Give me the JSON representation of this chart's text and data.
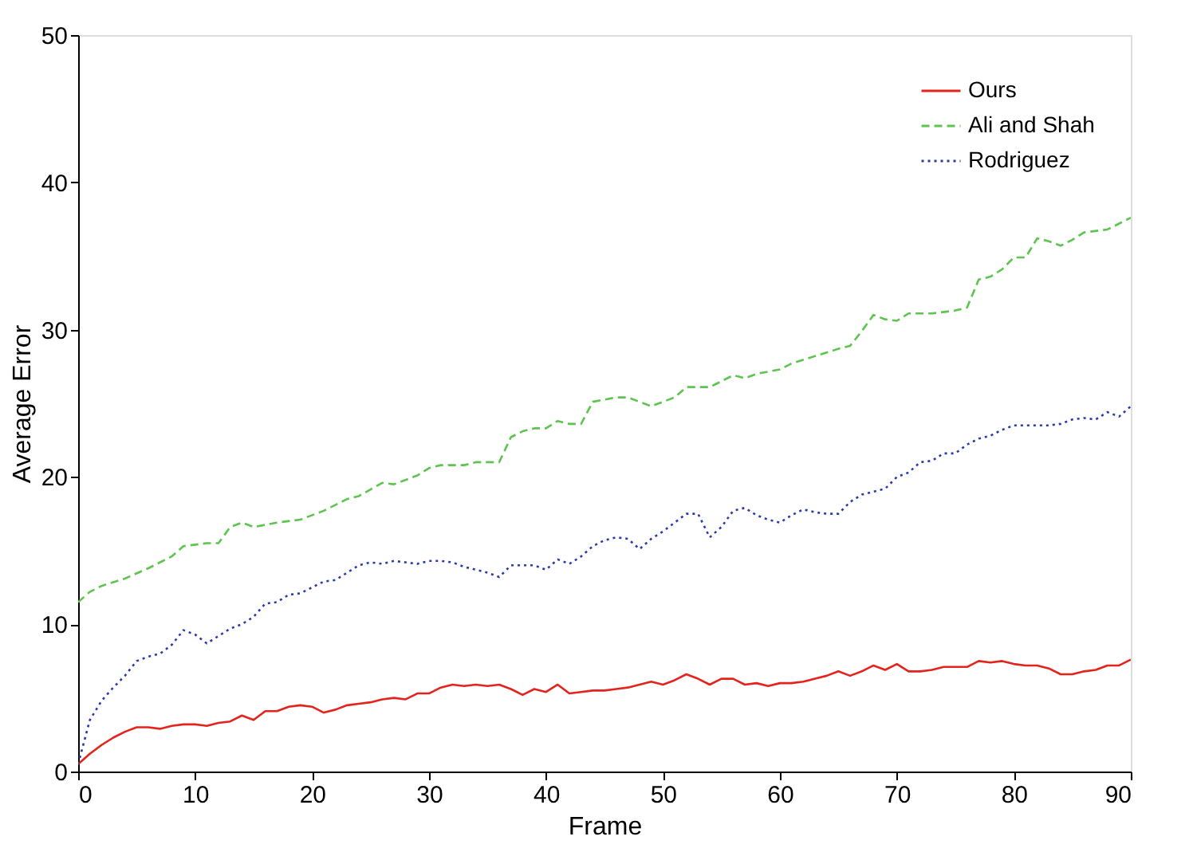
{
  "chart_data": {
    "type": "line",
    "xlabel": "Frame",
    "ylabel": "Average Error",
    "xlim": [
      0,
      90
    ],
    "ylim": [
      0,
      50
    ],
    "xticks": [
      0,
      10,
      20,
      30,
      40,
      50,
      60,
      70,
      80,
      90
    ],
    "yticks": [
      0,
      10,
      20,
      30,
      40,
      50
    ],
    "grid": false,
    "legend": "top right",
    "marker": "none",
    "series": [
      {
        "name": "Ours",
        "color": "#e3231c",
        "line_style": "solid",
        "x": [
          0,
          1,
          2,
          3,
          4,
          5,
          6,
          7,
          8,
          9,
          10,
          11,
          12,
          13,
          14,
          15,
          16,
          17,
          18,
          19,
          20,
          21,
          22,
          23,
          24,
          25,
          26,
          27,
          28,
          29,
          30,
          31,
          32,
          33,
          34,
          35,
          36,
          37,
          38,
          39,
          40,
          41,
          42,
          43,
          44,
          45,
          46,
          47,
          48,
          49,
          50,
          51,
          52,
          53,
          54,
          55,
          56,
          57,
          58,
          59,
          60,
          61,
          62,
          63,
          64,
          65,
          66,
          67,
          68,
          69,
          70,
          71,
          72,
          73,
          74,
          75,
          76,
          77,
          78,
          79,
          80,
          81,
          82,
          83,
          84,
          85,
          86,
          87,
          88,
          89,
          90
        ],
        "values": [
          0.5,
          1.2,
          1.8,
          2.3,
          2.7,
          3.0,
          3.0,
          2.9,
          3.1,
          3.2,
          3.2,
          3.1,
          3.3,
          3.4,
          3.8,
          3.5,
          4.1,
          4.1,
          4.4,
          4.5,
          4.4,
          4.0,
          4.2,
          4.5,
          4.6,
          4.7,
          4.9,
          5.0,
          4.9,
          5.3,
          5.3,
          5.7,
          5.9,
          5.8,
          5.9,
          5.8,
          5.9,
          5.6,
          5.2,
          5.6,
          5.4,
          5.9,
          5.3,
          5.4,
          5.5,
          5.5,
          5.6,
          5.7,
          5.9,
          6.1,
          5.9,
          6.2,
          6.6,
          6.3,
          5.9,
          6.3,
          6.3,
          5.9,
          6.0,
          5.8,
          6.0,
          6.0,
          6.1,
          6.3,
          6.5,
          6.8,
          6.5,
          6.8,
          7.2,
          6.9,
          7.3,
          6.8,
          6.8,
          6.9,
          7.1,
          7.1,
          7.1,
          7.5,
          7.4,
          7.5,
          7.3,
          7.2,
          7.2,
          7.0,
          6.6,
          6.6,
          6.8,
          6.9,
          7.2,
          7.2,
          7.6
        ]
      },
      {
        "name": "Ali and Shah",
        "color": "#5ec450",
        "line_style": "dashed",
        "x": [
          0,
          1,
          2,
          4,
          6,
          8,
          9,
          11,
          12,
          13,
          14,
          15,
          17,
          19,
          21,
          23,
          24,
          26,
          27,
          29,
          30,
          31,
          33,
          34,
          36,
          37,
          38,
          39,
          40,
          41,
          42,
          43,
          44,
          46,
          47,
          48,
          49,
          50,
          51,
          52,
          53,
          54,
          55,
          56,
          57,
          58,
          60,
          61,
          63,
          65,
          66,
          67,
          68,
          69,
          70,
          71,
          73,
          75,
          76,
          77,
          78,
          79,
          80,
          81,
          82,
          83,
          84,
          85,
          86,
          88,
          90
        ],
        "values": [
          11.5,
          12.2,
          12.6,
          13.1,
          13.8,
          14.6,
          15.3,
          15.5,
          15.5,
          16.6,
          16.9,
          16.6,
          16.9,
          17.1,
          17.7,
          18.5,
          18.7,
          19.6,
          19.5,
          20.1,
          20.6,
          20.8,
          20.8,
          21.0,
          21.0,
          22.7,
          23.1,
          23.3,
          23.3,
          23.8,
          23.6,
          23.6,
          25.1,
          25.4,
          25.4,
          25.1,
          24.8,
          25.1,
          25.4,
          26.1,
          26.1,
          26.1,
          26.5,
          26.9,
          26.7,
          27.0,
          27.3,
          27.7,
          28.2,
          28.7,
          28.9,
          29.9,
          31.0,
          30.7,
          30.6,
          31.1,
          31.1,
          31.3,
          31.5,
          33.4,
          33.6,
          34.1,
          34.9,
          34.9,
          36.2,
          36.0,
          35.7,
          36.1,
          36.6,
          36.8,
          37.6
        ]
      },
      {
        "name": "Rodriguez",
        "color": "#2a3aa8",
        "line_style": "dotted",
        "x": [
          0,
          1,
          2,
          3,
          4,
          5,
          6,
          7,
          8,
          9,
          10,
          11,
          12,
          13,
          14,
          15,
          16,
          17,
          18,
          19,
          20,
          21,
          22,
          23,
          24,
          25,
          26,
          27,
          28,
          29,
          30,
          31,
          32,
          33,
          34,
          35,
          36,
          37,
          38,
          39,
          40,
          41,
          42,
          43,
          44,
          45,
          46,
          47,
          48,
          49,
          50,
          51,
          52,
          53,
          54,
          55,
          56,
          57,
          58,
          59,
          60,
          61,
          62,
          63,
          64,
          65,
          66,
          67,
          68,
          69,
          70,
          71,
          72,
          73,
          74,
          75,
          76,
          77,
          78,
          79,
          80,
          81,
          82,
          83,
          84,
          85,
          86,
          87,
          88,
          89,
          90
        ],
        "values": [
          0.5,
          3.5,
          4.8,
          5.7,
          6.5,
          7.5,
          7.8,
          8.0,
          8.6,
          9.6,
          9.3,
          8.7,
          9.2,
          9.7,
          10.0,
          10.5,
          11.4,
          11.5,
          12.0,
          12.1,
          12.5,
          12.9,
          13.0,
          13.5,
          14.0,
          14.2,
          14.1,
          14.3,
          14.2,
          14.1,
          14.3,
          14.3,
          14.2,
          13.9,
          13.7,
          13.5,
          13.2,
          14.0,
          14.0,
          14.0,
          13.7,
          14.4,
          14.1,
          14.6,
          15.3,
          15.7,
          15.9,
          15.8,
          15.1,
          15.8,
          16.3,
          16.9,
          17.5,
          17.5,
          15.9,
          16.6,
          17.7,
          17.9,
          17.4,
          17.1,
          16.9,
          17.4,
          17.8,
          17.6,
          17.5,
          17.5,
          18.3,
          18.8,
          19.0,
          19.2,
          20.0,
          20.3,
          21.0,
          21.1,
          21.6,
          21.6,
          22.2,
          22.6,
          22.8,
          23.2,
          23.5,
          23.5,
          23.5,
          23.5,
          23.6,
          23.9,
          24.0,
          23.9,
          24.4,
          24.1,
          24.8
        ]
      }
    ]
  }
}
